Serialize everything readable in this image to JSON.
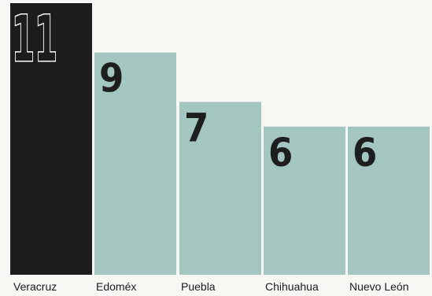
{
  "chart_data": {
    "type": "bar",
    "categories": [
      "Veracruz",
      "Edoméx",
      "Puebla",
      "Chihuahua",
      "Nuevo León"
    ],
    "values": [
      11,
      9,
      7,
      6,
      6
    ],
    "value_labels": [
      "11",
      "9",
      "7",
      "6",
      "6"
    ],
    "highlight_index": 0,
    "colors": {
      "highlight": "#1c1c1c",
      "bar": "#a4c6c1",
      "value_on_highlight_fill": "#1c1c1c",
      "value_on_highlight_stroke": "#ffffff",
      "value_on_bar": "#1e1e1e",
      "label": "#1b1b1b",
      "background": "#f7f7f4"
    },
    "title": "",
    "xlabel": "",
    "ylabel": "",
    "ylim": [
      0,
      11
    ],
    "grid": false,
    "legend": "none"
  }
}
